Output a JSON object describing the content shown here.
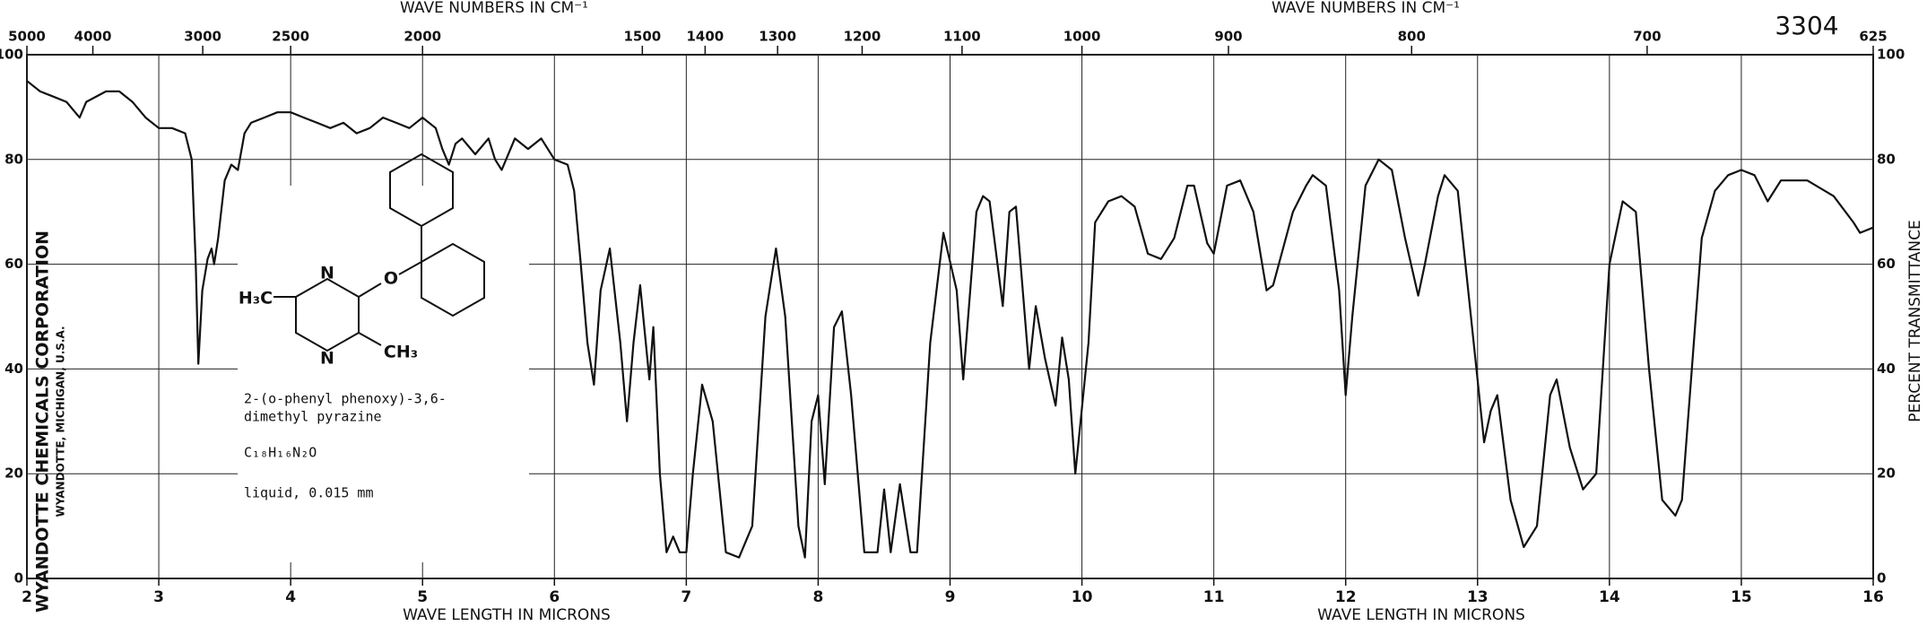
{
  "chart_data": {
    "type": "line",
    "number": "3304",
    "top_label": "WAVE NUMBERS IN CM⁻¹",
    "xlabel": "WAVE LENGTH IN MICRONS",
    "ylabel": "PERCENT TRANSMITTANCE",
    "maker": "WYANDOTTE CHEMICALS CORPORATION",
    "maker_place": "WYANDOTTE, MICHIGAN, U.S.A.",
    "compound": {
      "name_line1": "2-(o-phenyl phenoxy)-3,6-",
      "name_line2": "dimethyl pyrazine",
      "formula": "C₁₈H₁₆N₂O",
      "sample": "liquid, 0.015 mm",
      "atoms": [
        "H₃C",
        "N",
        "N",
        "O",
        "CH₃"
      ]
    },
    "xlim": [
      2,
      16
    ],
    "ylim": [
      0,
      100
    ],
    "xticks": [
      2,
      3,
      4,
      5,
      6,
      7,
      8,
      9,
      10,
      11,
      12,
      13,
      14,
      15,
      16
    ],
    "yticks": [
      0,
      20,
      40,
      60,
      80,
      100
    ],
    "x2ticks": [
      5000,
      4000,
      3000,
      2500,
      2000,
      1500,
      1400,
      1300,
      1200,
      1100,
      1000,
      900,
      800,
      700,
      625
    ],
    "grid": true,
    "x": [
      2.0,
      2.1,
      2.2,
      2.3,
      2.4,
      2.45,
      2.6,
      2.7,
      2.8,
      2.9,
      3.0,
      3.1,
      3.2,
      3.25,
      3.28,
      3.3,
      3.33,
      3.37,
      3.4,
      3.42,
      3.45,
      3.5,
      3.55,
      3.6,
      3.65,
      3.7,
      3.8,
      3.9,
      4.0,
      4.1,
      4.2,
      4.3,
      4.4,
      4.5,
      4.6,
      4.7,
      4.8,
      4.9,
      5.0,
      5.1,
      5.15,
      5.2,
      5.25,
      5.3,
      5.4,
      5.5,
      5.55,
      5.6,
      5.7,
      5.8,
      5.9,
      6.0,
      6.1,
      6.15,
      6.2,
      6.25,
      6.3,
      6.35,
      6.42,
      6.5,
      6.55,
      6.6,
      6.65,
      6.72,
      6.75,
      6.8,
      6.85,
      6.9,
      6.95,
      7.0,
      7.05,
      7.12,
      7.2,
      7.3,
      7.4,
      7.5,
      7.6,
      7.68,
      7.75,
      7.85,
      7.9,
      7.95,
      8.0,
      8.05,
      8.12,
      8.18,
      8.25,
      8.35,
      8.45,
      8.5,
      8.55,
      8.62,
      8.7,
      8.75,
      8.85,
      8.95,
      9.05,
      9.1,
      9.2,
      9.25,
      9.3,
      9.4,
      9.45,
      9.5,
      9.6,
      9.65,
      9.72,
      9.8,
      9.85,
      9.9,
      9.95,
      10.05,
      10.1,
      10.2,
      10.3,
      10.4,
      10.5,
      10.6,
      10.7,
      10.8,
      10.85,
      10.95,
      11.0,
      11.1,
      11.2,
      11.3,
      11.4,
      11.45,
      11.6,
      11.7,
      11.75,
      11.85,
      11.95,
      12.0,
      12.05,
      12.15,
      12.25,
      12.35,
      12.45,
      12.55,
      12.6,
      12.7,
      12.75,
      12.85,
      12.95,
      13.05,
      13.1,
      13.15,
      13.25,
      13.35,
      13.45,
      13.55,
      13.6,
      13.7,
      13.8,
      13.9,
      14.0,
      14.1,
      14.2,
      14.3,
      14.4,
      14.5,
      14.55,
      14.7,
      14.8,
      14.9,
      15.0,
      15.1,
      15.2,
      15.3,
      15.5,
      15.7,
      15.85,
      15.9,
      16.0
    ],
    "series": [
      {
        "color": "#111111",
        "values": [
          95,
          93,
          92,
          91,
          88,
          91,
          93,
          93,
          91,
          88,
          86,
          86,
          85,
          80,
          60,
          41,
          55,
          61,
          63,
          60,
          65,
          76,
          79,
          78,
          85,
          87,
          88,
          89,
          89,
          88,
          87,
          86,
          87,
          85,
          86,
          88,
          87,
          86,
          88,
          86,
          82,
          79,
          83,
          84,
          81,
          84,
          80,
          78,
          84,
          82,
          84,
          80,
          79,
          74,
          60,
          45,
          37,
          55,
          63,
          45,
          30,
          45,
          56,
          38,
          48,
          20,
          5,
          8,
          5,
          5,
          20,
          37,
          30,
          5,
          4,
          10,
          50,
          63,
          50,
          10,
          4,
          30,
          35,
          18,
          48,
          51,
          35,
          5,
          5,
          17,
          5,
          18,
          5,
          5,
          45,
          66,
          55,
          38,
          70,
          73,
          72,
          52,
          70,
          71,
          40,
          52,
          42,
          33,
          46,
          38,
          20,
          45,
          68,
          72,
          73,
          71,
          62,
          61,
          65,
          75,
          75,
          64,
          62,
          75,
          76,
          70,
          55,
          56,
          70,
          75,
          77,
          75,
          55,
          35,
          50,
          75,
          80,
          78,
          65,
          54,
          60,
          73,
          77,
          74,
          50,
          26,
          32,
          35,
          15,
          6,
          10,
          35,
          38,
          25,
          17,
          20,
          60,
          72,
          70,
          40,
          15,
          12,
          15,
          65,
          74,
          77,
          78,
          77,
          72,
          76,
          76,
          73,
          68,
          66,
          67
        ]
      }
    ]
  }
}
